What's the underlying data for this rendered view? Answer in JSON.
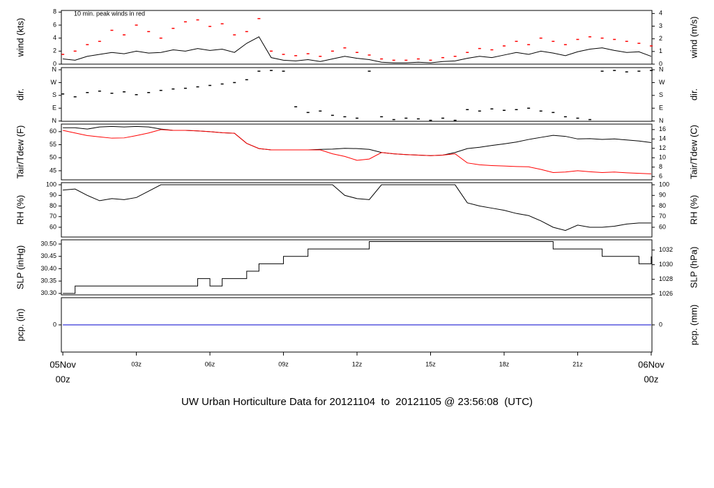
{
  "caption": {
    "text": "UW Urban Horticulture Data for 20121104  to  20121105 @ 23:56:08  (UTC)",
    "color": "#0000cc"
  },
  "chart_data": [
    {
      "type": "line",
      "ylabel": "wind (kts)",
      "y2label": "wind (m/s)",
      "annotation": "10 min. peak winds in red",
      "annotation_color": "#ff0000",
      "xlim": [
        -0.06,
        24.03
      ],
      "ylim": [
        0,
        8.25
      ],
      "yticks": [
        0,
        2,
        4,
        6,
        8
      ],
      "y2lim": [
        0,
        4.24
      ],
      "y2ticks": [
        0,
        1,
        2,
        3,
        4
      ],
      "x": [
        0,
        0.5,
        1,
        1.5,
        2,
        2.5,
        3,
        3.5,
        4,
        4.5,
        5,
        5.5,
        6,
        6.5,
        7,
        7.5,
        8,
        8.5,
        9,
        9.5,
        10,
        10.5,
        11,
        11.5,
        12,
        12.5,
        13,
        13.5,
        14,
        14.5,
        15,
        15.5,
        16,
        16.5,
        17,
        17.5,
        18,
        18.5,
        19,
        19.5,
        20,
        20.5,
        21,
        21.5,
        22,
        22.5,
        23,
        23.5,
        24
      ],
      "series": [
        {
          "color": "#000000",
          "marker": "line",
          "values": [
            0.8,
            0.6,
            1.2,
            1.5,
            1.8,
            1.6,
            2.0,
            1.7,
            1.8,
            2.2,
            2.0,
            2.4,
            2.1,
            2.3,
            1.8,
            3.2,
            4.2,
            1.0,
            0.6,
            0.5,
            0.7,
            0.4,
            0.8,
            1.2,
            0.9,
            0.7,
            0.3,
            0.2,
            0.2,
            0.3,
            0.2,
            0.4,
            0.5,
            0.9,
            1.2,
            1.0,
            1.4,
            1.8,
            1.5,
            2.0,
            1.7,
            1.3,
            1.9,
            2.3,
            2.5,
            2.1,
            1.8,
            1.9,
            1.2
          ]
        },
        {
          "color": "#ff0000",
          "marker": "dash",
          "values": [
            1.5,
            2.0,
            3.0,
            3.5,
            5.2,
            4.5,
            6.0,
            5.0,
            4.0,
            5.5,
            6.5,
            6.8,
            5.8,
            6.2,
            4.5,
            5.0,
            7.0,
            2.0,
            1.5,
            1.3,
            1.6,
            1.2,
            2.0,
            2.5,
            1.8,
            1.4,
            0.8,
            0.6,
            0.6,
            0.8,
            0.6,
            1.0,
            1.2,
            1.8,
            2.4,
            2.2,
            2.8,
            3.5,
            3.0,
            4.0,
            3.5,
            3.0,
            3.8,
            4.2,
            4.0,
            3.8,
            3.5,
            3.2,
            2.8
          ]
        }
      ]
    },
    {
      "type": "scatter",
      "ylabel": "dir.",
      "y2label": "dir.",
      "xlim": [
        -0.06,
        24.03
      ],
      "ylim": [
        -2,
        375
      ],
      "yticks": [
        {
          "value": 0,
          "label": "N"
        },
        {
          "value": 90,
          "label": "E"
        },
        {
          "value": 180,
          "label": "S"
        },
        {
          "value": 270,
          "label": "W"
        },
        {
          "value": 360,
          "label": "N"
        }
      ],
      "y2lim": [
        -2,
        375
      ],
      "y2ticks": [
        {
          "value": 0,
          "label": "N"
        },
        {
          "value": 90,
          "label": "E"
        },
        {
          "value": 180,
          "label": "S"
        },
        {
          "value": 270,
          "label": "W"
        },
        {
          "value": 360,
          "label": "N"
        }
      ],
      "x": [
        0,
        0.5,
        1,
        1.5,
        2,
        2.5,
        3,
        3.5,
        4,
        4.5,
        5,
        5.5,
        6,
        6.5,
        7,
        7.5,
        8,
        8.5,
        9,
        9.5,
        10,
        10.5,
        11,
        11.5,
        12,
        12.5,
        13,
        13.5,
        14,
        14.5,
        15,
        15.5,
        16,
        16.5,
        17,
        17.5,
        18,
        18.5,
        19,
        19.5,
        20,
        20.5,
        21,
        21.5,
        22,
        22.5,
        23,
        23.5,
        24
      ],
      "series": [
        {
          "color": "#000000",
          "marker": "dash",
          "values": [
            190,
            170,
            200,
            210,
            195,
            205,
            185,
            200,
            215,
            225,
            230,
            240,
            250,
            260,
            270,
            290,
            350,
            355,
            350,
            100,
            60,
            70,
            40,
            30,
            20,
            350,
            30,
            10,
            20,
            15,
            5,
            20,
            5,
            80,
            70,
            85,
            75,
            80,
            90,
            70,
            60,
            30,
            20,
            10,
            350,
            355,
            345,
            350,
            355
          ]
        }
      ]
    },
    {
      "type": "line",
      "ylabel": "Tair/Tdew (F)",
      "y2label": "Tair/Tdew (C)",
      "xlim": [
        -0.06,
        24.03
      ],
      "ylim": [
        41.5,
        62.9
      ],
      "yticks": [
        45,
        50,
        55,
        60
      ],
      "y2lim": [
        5.28,
        17.17
      ],
      "y2ticks": [
        6,
        8,
        10,
        12,
        14,
        16
      ],
      "x": [
        0,
        0.5,
        1,
        1.5,
        2,
        2.5,
        3,
        3.5,
        4,
        4.5,
        5,
        5.5,
        6,
        6.5,
        7,
        7.5,
        8,
        8.5,
        9,
        9.5,
        10,
        10.5,
        11,
        11.5,
        12,
        12.5,
        13,
        13.5,
        14,
        14.5,
        15,
        15.5,
        16,
        16.5,
        17,
        17.5,
        18,
        18.5,
        19,
        19.5,
        20,
        20.5,
        21,
        21.5,
        22,
        22.5,
        23,
        23.5,
        24
      ],
      "series": [
        {
          "color": "#000000",
          "marker": "line",
          "values": [
            61.5,
            61.5,
            61,
            61.8,
            62,
            61.8,
            62,
            61.8,
            61,
            60.5,
            60.5,
            60.3,
            60,
            59.6,
            59.4,
            55.5,
            53.5,
            53,
            53,
            53,
            53,
            53.2,
            53.3,
            53.6,
            53.5,
            53.2,
            52,
            51.5,
            51.2,
            51,
            50.8,
            51,
            52,
            53.5,
            54,
            54.7,
            55.3,
            56,
            57,
            57.8,
            58.6,
            58.2,
            57.2,
            57.3,
            57,
            57.2,
            56.8,
            56.4,
            55.8
          ]
        },
        {
          "color": "#ff0000",
          "marker": "line",
          "values": [
            60.5,
            59.5,
            58.5,
            58,
            57.5,
            57.6,
            58.5,
            59.5,
            60.8,
            60.5,
            60.5,
            60.3,
            60,
            59.6,
            59.4,
            55.5,
            53.5,
            53,
            53,
            53,
            53,
            53,
            51.5,
            50.5,
            49,
            49.5,
            52,
            51.5,
            51.2,
            51,
            50.8,
            51,
            51.5,
            48,
            47.3,
            47,
            46.8,
            46.6,
            46.5,
            45.5,
            44.3,
            44.5,
            45,
            44.6,
            44.3,
            44.5,
            44.2,
            44,
            43.8
          ]
        }
      ]
    },
    {
      "type": "line",
      "ylabel": "RH (%)",
      "y2label": "RH (%)",
      "xlim": [
        -0.06,
        24.03
      ],
      "ylim": [
        50.8,
        102
      ],
      "yticks": [
        60,
        70,
        80,
        90,
        100
      ],
      "y2lim": [
        50.8,
        102
      ],
      "y2ticks": [
        60,
        70,
        80,
        90,
        100
      ],
      "x": [
        0,
        0.5,
        1,
        1.5,
        2,
        2.5,
        3,
        3.5,
        4,
        4.5,
        5,
        5.5,
        6,
        6.5,
        7,
        7.5,
        8,
        8.5,
        9,
        9.5,
        10,
        10.5,
        11,
        11.5,
        12,
        12.5,
        13,
        13.5,
        14,
        14.5,
        15,
        15.5,
        16,
        16.5,
        17,
        17.5,
        18,
        18.5,
        19,
        19.5,
        20,
        20.5,
        21,
        21.5,
        22,
        22.5,
        23,
        23.5,
        24
      ],
      "series": [
        {
          "color": "#000000",
          "marker": "line",
          "values": [
            95,
            96,
            90,
            85,
            87,
            86,
            88,
            94,
            100,
            100,
            100,
            100,
            100,
            100,
            100,
            100,
            100,
            100,
            100,
            100,
            100,
            100,
            100,
            90,
            87,
            86,
            100,
            100,
            100,
            100,
            100,
            100,
            100,
            83,
            80,
            78,
            76,
            73,
            71,
            66,
            60,
            57,
            62,
            60,
            60,
            61,
            63,
            64,
            64
          ]
        }
      ]
    },
    {
      "type": "step",
      "ylabel": "SLP (inHg)",
      "y2label": "SLP (hPa)",
      "xlim": [
        -0.06,
        24.03
      ],
      "ylim": [
        30.294,
        30.517
      ],
      "yticks": [
        {
          "value": 30.3,
          "label": "30.30"
        },
        {
          "value": 30.35,
          "label": "30.35"
        },
        {
          "value": 30.4,
          "label": "30.40"
        },
        {
          "value": 30.45,
          "label": "30.45"
        },
        {
          "value": 30.5,
          "label": "30.50"
        }
      ],
      "y2lim": [
        1025.87,
        1033.4
      ],
      "y2ticks": [
        1026,
        1028,
        1030,
        1032
      ],
      "x": [
        0,
        0.5,
        1,
        1.5,
        2,
        2.5,
        3,
        3.5,
        4,
        4.5,
        5,
        5.5,
        6,
        6.5,
        7,
        7.5,
        8,
        8.5,
        9,
        9.5,
        10,
        10.5,
        11,
        11.5,
        12,
        12.5,
        13,
        13.5,
        14,
        14.5,
        15,
        15.5,
        16,
        16.5,
        17,
        17.5,
        18,
        18.5,
        19,
        19.5,
        20,
        20.5,
        21,
        21.5,
        22,
        22.5,
        23,
        23.5,
        24
      ],
      "series": [
        {
          "color": "#000000",
          "marker": "line",
          "values": [
            30.3,
            30.33,
            30.33,
            30.33,
            30.33,
            30.33,
            30.33,
            30.33,
            30.33,
            30.33,
            30.33,
            30.36,
            30.33,
            30.36,
            30.36,
            30.39,
            30.42,
            30.42,
            30.45,
            30.45,
            30.48,
            30.48,
            30.48,
            30.48,
            30.48,
            30.51,
            30.51,
            30.51,
            30.51,
            30.51,
            30.51,
            30.51,
            30.51,
            30.51,
            30.51,
            30.51,
            30.51,
            30.51,
            30.51,
            30.51,
            30.48,
            30.48,
            30.48,
            30.48,
            30.45,
            30.45,
            30.45,
            30.42,
            30.45
          ]
        }
      ]
    },
    {
      "type": "line",
      "ylabel": "pcp. (in)",
      "y2label": "pcp. (mm)",
      "xlim": [
        -0.06,
        24.03
      ],
      "ylim": [
        -1,
        1
      ],
      "yticks": [
        0
      ],
      "y2lim": [
        -25.4,
        25.4
      ],
      "y2ticks": [
        0
      ],
      "xticks": [
        {
          "value": 0,
          "label": "05Nov",
          "label2": "00z",
          "color": "#ff0000"
        },
        {
          "value": 3,
          "label": "03z"
        },
        {
          "value": 6,
          "label": "06z"
        },
        {
          "value": 9,
          "label": "09z"
        },
        {
          "value": 12,
          "label": "12z"
        },
        {
          "value": 15,
          "label": "15z"
        },
        {
          "value": 18,
          "label": "18z"
        },
        {
          "value": 21,
          "label": "21z"
        },
        {
          "value": 24,
          "label": "06Nov",
          "label2": "00z",
          "color": "#ff0000"
        }
      ],
      "x": [
        0,
        24
      ],
      "series": [
        {
          "color": "#0000cc",
          "marker": "line",
          "values": [
            0,
            0
          ]
        }
      ]
    }
  ]
}
